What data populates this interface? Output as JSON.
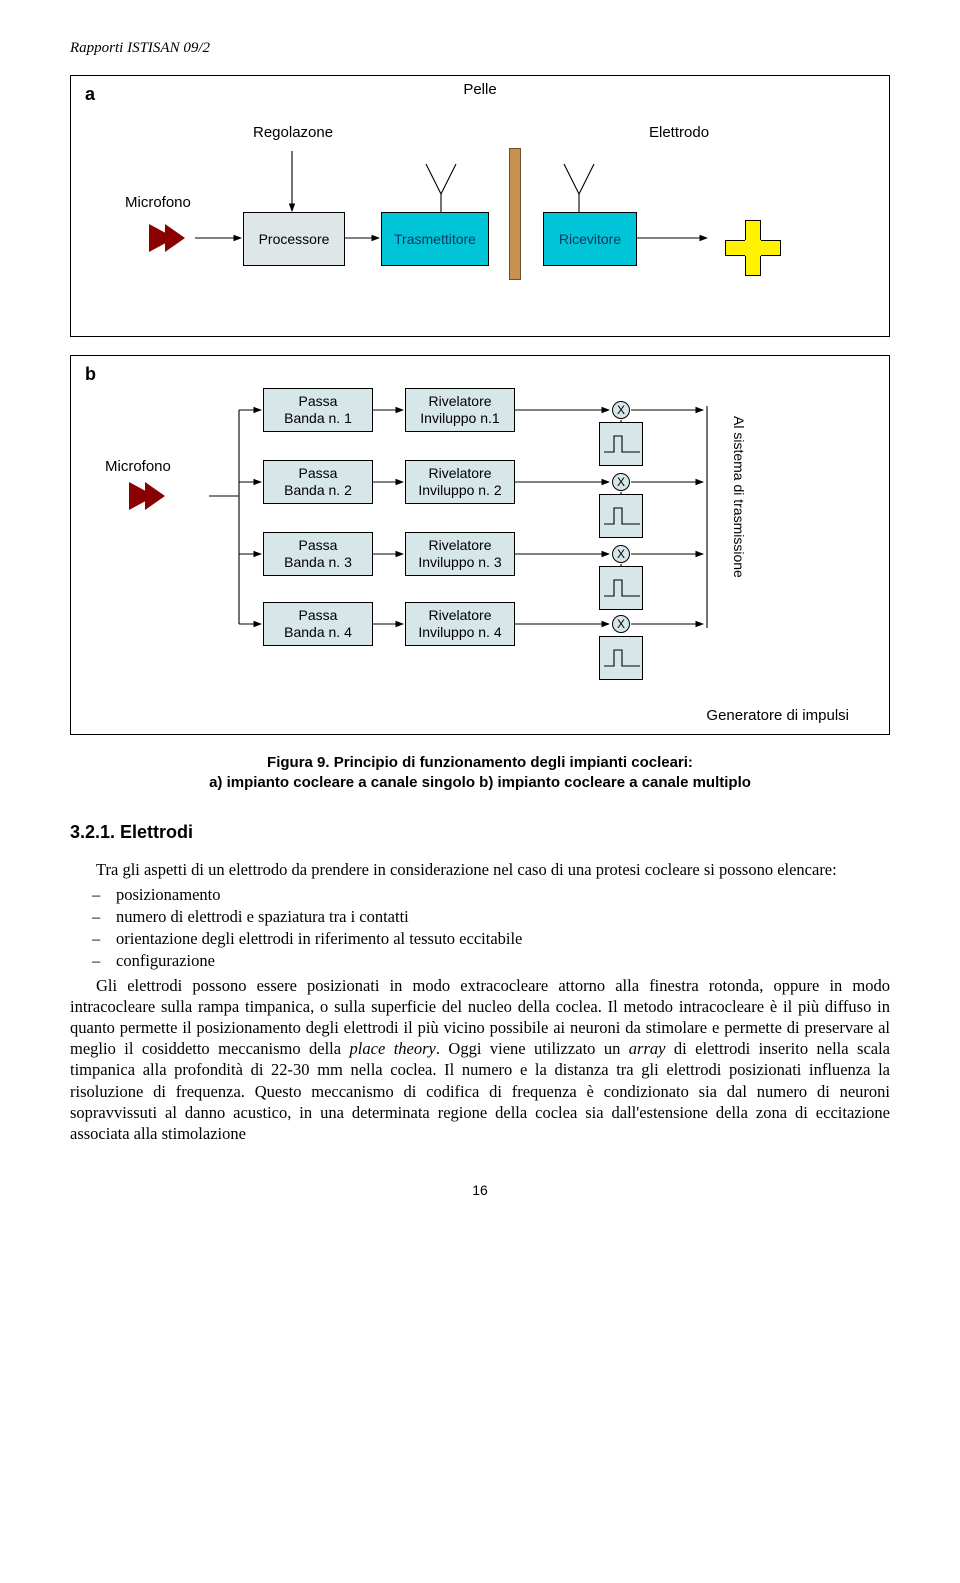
{
  "header": "Rapporti ISTISAN 09/2",
  "figA": {
    "panel": "a",
    "pelle": "Pelle",
    "regolazone": "Regolazone",
    "elettrodo": "Elettrodo",
    "microfono": "Microfono",
    "processore": "Processore",
    "trasmettitore": "Trasmettitore",
    "ricevitore": "Ricevitore",
    "colors": {
      "box_fill": "#d6e6e9",
      "cyan_fill": "#00c4d8",
      "mic_fill": "#8b0000",
      "skin_fill": "#c9914f",
      "cross_fill": "#fff200",
      "border": "#000000"
    }
  },
  "figB": {
    "panel": "b",
    "microfono": "Microfono",
    "rows": [
      {
        "passa": "Passa\nBanda n. 1",
        "riv": "Rivelatore\nInviluppo n.1"
      },
      {
        "passa": "Passa\nBanda n. 2",
        "riv": "Rivelatore\nInviluppo n. 2"
      },
      {
        "passa": "Passa\nBanda n. 3",
        "riv": "Rivelatore\nInviluppo n. 3"
      },
      {
        "passa": "Passa\nBanda n. 4",
        "riv": "Rivelatore\nInviluppo n. 4"
      }
    ],
    "x_label": "X",
    "vtext": "Al sistema di trasmissione",
    "generatore": "Generatore di impulsi"
  },
  "caption": {
    "line1_bold": "Figura 9. Principio di funzionamento degli impianti cocleari:",
    "line2": "a) impianto cocleare a canale singolo b) impianto cocleare a canale multiplo"
  },
  "section": {
    "heading": "3.2.1. Elettrodi",
    "intro": "Tra gli aspetti di un elettrodo da prendere in considerazione nel caso di una protesi cocleare si possono elencare:",
    "bullets": [
      "posizionamento",
      "numero di elettrodi e spaziatura tra i contatti",
      "orientazione degli elettrodi in riferimento al tessuto eccitabile",
      "configurazione"
    ],
    "para": "Gli elettrodi possono essere posizionati in modo extracocleare attorno alla finestra rotonda, oppure in modo intracocleare sulla rampa timpanica, o sulla superficie del nucleo della coclea. Il metodo intracocleare è il più diffuso in quanto permette il posizionamento degli elettrodi il più vicino possibile ai neuroni da stimolare e permette di preservare al meglio il cosiddetto meccanismo della <i>place theory</i>. Oggi viene utilizzato un <i>array</i> di elettrodi inserito nella scala timpanica alla profondità di 22-30 mm nella coclea. Il numero e la distanza tra gli elettrodi posizionati influenza la risoluzione di frequenza. Questo meccanismo di codifica di frequenza è condizionato sia dal numero di neuroni sopravvissuti al danno acustico, in una determinata regione della coclea sia dall'estensione della zona di eccitazione associata alla stimolazione"
  },
  "pagenum": "16"
}
